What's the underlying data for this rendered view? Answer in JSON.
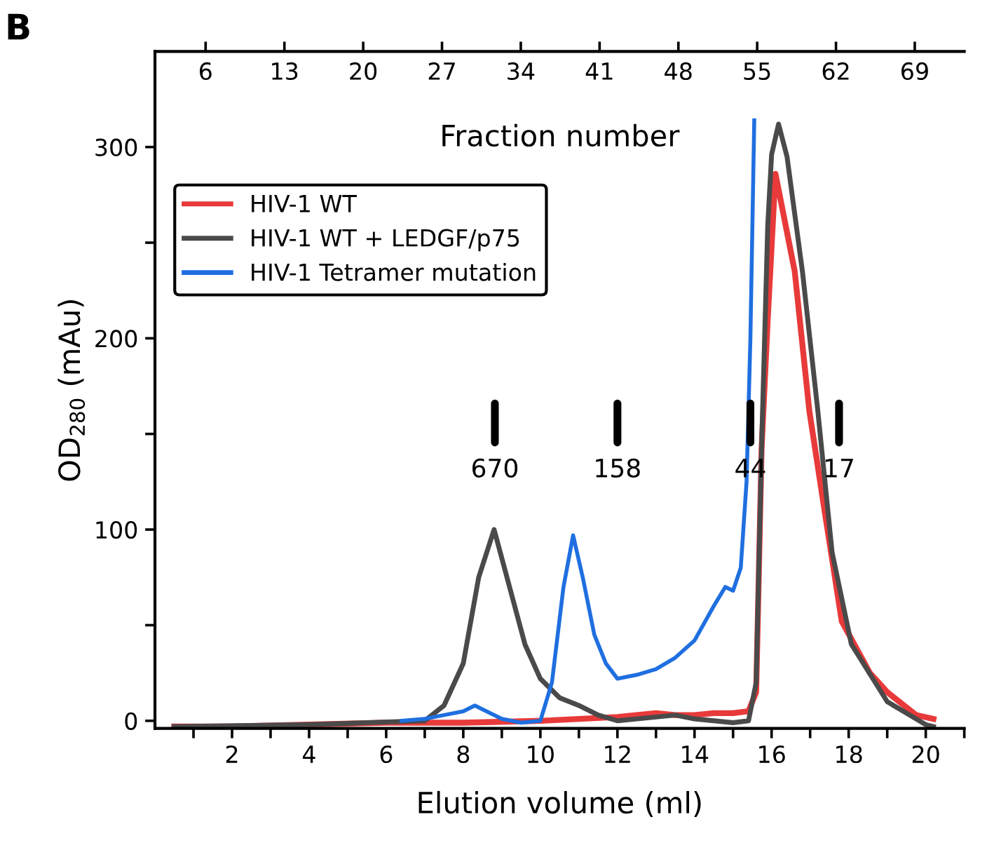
{
  "chart_data": {
    "type": "line",
    "title": "B",
    "xlabel": "Elution volume (ml)",
    "ylabel": "OD$_{280}$ (mAu)",
    "x2label": "Fraction number",
    "xlim": [
      0,
      21
    ],
    "ylim": [
      -4,
      350
    ],
    "x2lim": [
      1.5,
      73.4
    ],
    "xticks": [
      {
        "value": 1,
        "label": null
      },
      2,
      {
        "value": 3,
        "label": null
      },
      4,
      {
        "value": 5,
        "label": null
      },
      6,
      {
        "value": 7,
        "label": null
      },
      8,
      {
        "value": 9,
        "label": null
      },
      10,
      {
        "value": 11,
        "label": null
      },
      12,
      {
        "value": 13,
        "label": null
      },
      14,
      {
        "value": 15,
        "label": null
      },
      16,
      {
        "value": 17,
        "label": null
      },
      18,
      {
        "value": 19,
        "label": null
      },
      20,
      {
        "value": 21,
        "label": null
      }
    ],
    "yticks": [
      0,
      {
        "value": 50,
        "label": null
      },
      100,
      {
        "value": 150,
        "label": null
      },
      200,
      {
        "value": 250,
        "label": null
      },
      300
    ],
    "x2ticks": [
      6,
      13,
      20,
      27,
      34,
      41,
      48,
      55,
      62,
      69
    ],
    "grid": false,
    "legend": "top left",
    "marker": "none",
    "line_style": "solid",
    "series": [
      {
        "name": "HIV-1 WT",
        "color": "#e83a3a",
        "x": [
          0.5,
          2,
          4,
          6,
          8,
          10,
          11,
          12,
          13,
          13.5,
          14,
          14.5,
          15,
          15.4,
          15.6,
          15.74,
          15.9,
          16.1,
          16.6,
          16.98,
          17.35,
          17.82,
          18.55,
          19.0,
          19.75,
          20.2
        ],
        "values": [
          -3,
          -3,
          -2,
          -1,
          -1,
          0,
          1,
          2,
          4,
          3,
          3,
          4,
          4,
          5,
          15,
          142,
          210,
          286,
          235,
          162,
          113,
          52,
          25,
          15,
          3,
          1
        ]
      },
      {
        "name": "HIV-1 WT + LEDGF/p75",
        "color": "#4a4a4a",
        "x": [
          0.5,
          4,
          7,
          7.5,
          8,
          8.4,
          8.8,
          9.2,
          9.6,
          10,
          10.5,
          11,
          11.5,
          12,
          13,
          13.5,
          14,
          15,
          15.4,
          15.6,
          15.75,
          15.9,
          16.0,
          16.18,
          16.4,
          16.8,
          17.2,
          17.57,
          18.07,
          19.0,
          20.0,
          20.2
        ],
        "values": [
          -3,
          -2,
          0,
          8,
          30,
          75,
          100,
          70,
          40,
          22,
          12,
          8,
          3,
          0,
          2,
          3,
          1,
          -1,
          0,
          20,
          150,
          259,
          296,
          312,
          295,
          235,
          162,
          88,
          40,
          10,
          -2,
          -3
        ]
      },
      {
        "name": "HIV-1 Tetramer mutation",
        "color": "#1f6fe0",
        "x": [
          6.4,
          7,
          7.5,
          8,
          8.3,
          8.5,
          9,
          9.5,
          10,
          10.3,
          10.6,
          10.85,
          11.1,
          11.4,
          11.7,
          12,
          12.5,
          13,
          13.5,
          14,
          14.5,
          14.8,
          15,
          15.2,
          15.35,
          15.45,
          15.55
        ],
        "values": [
          0,
          1,
          3,
          5,
          8,
          6,
          1,
          -1,
          0,
          20,
          70,
          97,
          75,
          45,
          30,
          22,
          24,
          27,
          33,
          42,
          60,
          70,
          68,
          80,
          125,
          200,
          314
        ]
      }
    ],
    "annotations": [
      {
        "text": "670",
        "x": 8.82
      },
      {
        "text": "158",
        "x": 12.0
      },
      {
        "text": "44",
        "x": 15.45
      },
      {
        "text": "17",
        "x": 17.75
      }
    ]
  }
}
